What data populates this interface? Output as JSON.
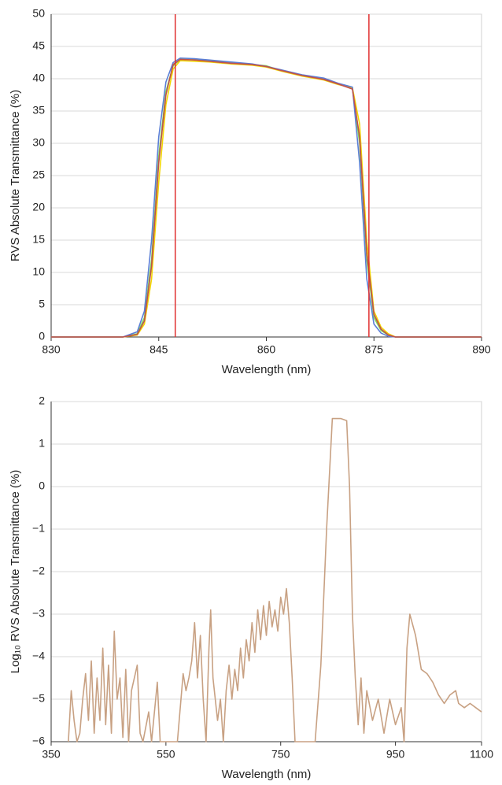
{
  "chart_data": [
    {
      "type": "line",
      "x_label": "Wavelength (nm)",
      "y_label": "RVS Absolute Transmittance (%)",
      "xlim": [
        830,
        890
      ],
      "xticks": [
        830,
        845,
        860,
        875,
        890
      ],
      "ylim": [
        0,
        50
      ],
      "yticks": [
        0,
        5,
        10,
        15,
        20,
        25,
        30,
        35,
        40,
        45,
        50
      ],
      "grid": true,
      "x": [
        830,
        840,
        842,
        843,
        844,
        845,
        846,
        847,
        848,
        850,
        852,
        855,
        858,
        860,
        862,
        865,
        868,
        870,
        872,
        873,
        874,
        875,
        876,
        877,
        878,
        880,
        890
      ],
      "series": [
        {
          "color": "#7ed957",
          "values": [
            0,
            0,
            0.5,
            3,
            12,
            28,
            38,
            42,
            43,
            43,
            42.8,
            42.5,
            42.2,
            42,
            41.3,
            40.5,
            40,
            39.2,
            38.5,
            30,
            12,
            3,
            1,
            0.3,
            0,
            0,
            0
          ]
        },
        {
          "color": "#f2d600",
          "values": [
            0,
            0,
            0.3,
            2,
            9,
            24,
            36,
            41.5,
            42.8,
            42.7,
            42.6,
            42.3,
            42.1,
            41.8,
            41.2,
            40.4,
            39.8,
            39.1,
            38.6,
            33,
            15,
            4,
            1.5,
            0.5,
            0,
            0,
            0
          ]
        },
        {
          "color": "#5b7fd6",
          "values": [
            0,
            0,
            0.8,
            4,
            15,
            31,
            39.5,
            42.5,
            43.2,
            43.1,
            42.9,
            42.6,
            42.3,
            41.9,
            41.4,
            40.6,
            40.1,
            39.3,
            38.7,
            27,
            9,
            2,
            0.6,
            0.1,
            0,
            0,
            0
          ]
        },
        {
          "color": "#c0504d",
          "values": [
            0,
            0,
            0.4,
            2.5,
            11,
            27,
            37.5,
            42.2,
            43,
            42.9,
            42.7,
            42.4,
            42.2,
            41.9,
            41.3,
            40.5,
            39.9,
            39.2,
            38.4,
            31,
            13,
            3.5,
            1.2,
            0.3,
            0,
            0,
            0
          ]
        }
      ],
      "vlines": [
        847.3,
        874.3
      ],
      "vline_color": "#e03030"
    },
    {
      "type": "line",
      "x_label": "Wavelength (nm)",
      "y_label": "Log₁₀ RVS Absolute Transmittance (%)",
      "xlim": [
        350,
        1100
      ],
      "xticks": [
        350,
        550,
        750,
        950,
        1100
      ],
      "ylim": [
        -6,
        2
      ],
      "yticks": [
        {
          "value": -6,
          "label": "−6"
        },
        {
          "value": -5,
          "label": "−5"
        },
        {
          "value": -4,
          "label": "−4"
        },
        {
          "value": -3,
          "label": "−3"
        },
        {
          "value": -2,
          "label": "−2"
        },
        {
          "value": -1,
          "label": "−1"
        },
        0,
        1,
        2
      ],
      "grid": true,
      "x": [
        380,
        385,
        390,
        395,
        400,
        405,
        410,
        415,
        420,
        425,
        430,
        435,
        440,
        445,
        450,
        455,
        460,
        465,
        470,
        475,
        480,
        485,
        490,
        500,
        505,
        510,
        520,
        525,
        535,
        540,
        570,
        580,
        585,
        590,
        595,
        600,
        605,
        610,
        615,
        620,
        625,
        628,
        632,
        640,
        645,
        650,
        655,
        660,
        665,
        670,
        675,
        680,
        685,
        690,
        695,
        700,
        705,
        710,
        715,
        720,
        725,
        730,
        735,
        740,
        745,
        750,
        755,
        760,
        765,
        770,
        775,
        810,
        820,
        830,
        840,
        855,
        865,
        870,
        875,
        880,
        885,
        890,
        895,
        900,
        910,
        920,
        930,
        940,
        950,
        960,
        965,
        970,
        975,
        985,
        995,
        1005,
        1015,
        1025,
        1035,
        1045,
        1055,
        1060,
        1070,
        1080,
        1090,
        1100
      ],
      "series": [
        {
          "color": "#c8a183",
          "values": [
            -6,
            -4.8,
            -5.5,
            -6,
            -5.8,
            -5,
            -4.4,
            -5.5,
            -4.1,
            -5.8,
            -4.5,
            -5.5,
            -3.8,
            -5.6,
            -4.2,
            -5.8,
            -3.4,
            -5,
            -4.5,
            -5.9,
            -4.3,
            -6,
            -4.8,
            -4.2,
            -5.8,
            -6,
            -5.3,
            -6,
            -4.6,
            -6,
            -6,
            -4.4,
            -4.8,
            -4.5,
            -4.1,
            -3.2,
            -4.5,
            -3.5,
            -5,
            -6,
            -3.8,
            -2.9,
            -4.5,
            -5.5,
            -5,
            -6,
            -4.8,
            -4.2,
            -5,
            -4.3,
            -4.8,
            -3.8,
            -4.5,
            -3.6,
            -4.1,
            -3.2,
            -3.9,
            -2.9,
            -3.6,
            -2.8,
            -3.5,
            -2.7,
            -3.3,
            -2.9,
            -3.4,
            -2.6,
            -3,
            -2.4,
            -3.2,
            -4.5,
            -6,
            -6,
            -4.2,
            -1,
            1.6,
            1.6,
            1.55,
            0,
            -3,
            -4.5,
            -5.6,
            -4.5,
            -5.8,
            -4.8,
            -5.5,
            -5,
            -5.8,
            -5,
            -5.6,
            -5.2,
            -6,
            -3.8,
            -3,
            -3.5,
            -4.3,
            -4.4,
            -4.6,
            -4.9,
            -5.1,
            -4.9,
            -4.8,
            -5.1,
            -5.2,
            -5.1,
            -5.2,
            -5.3
          ]
        }
      ]
    }
  ]
}
